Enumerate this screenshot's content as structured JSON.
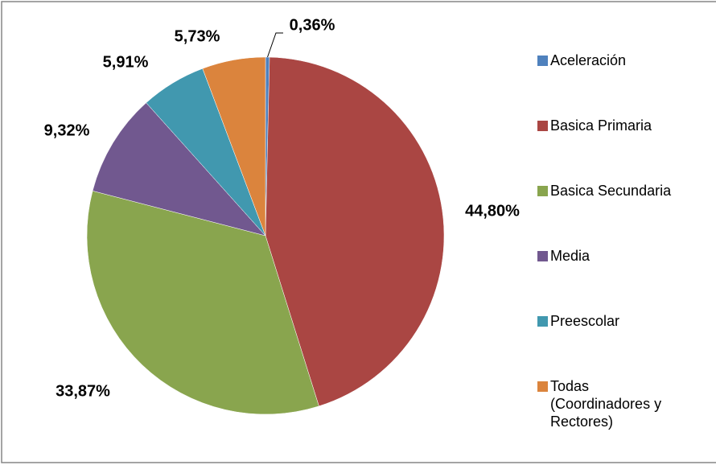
{
  "chart_data": {
    "type": "pie",
    "categories": [
      "Aceleración",
      "Basica Primaria",
      "Basica Secundaria",
      "Media",
      "Preescolar",
      "Todas (Coordinadores y Rectores)"
    ],
    "values": [
      0.36,
      44.8,
      33.87,
      9.32,
      5.91,
      5.73
    ],
    "value_labels": [
      "0,36%",
      "44,80%",
      "33,87%",
      "9,32%",
      "5,91%",
      "5,73%"
    ],
    "colors": [
      "#4F81BD",
      "#AA4643",
      "#89A54E",
      "#71588F",
      "#4198AF",
      "#DB843D"
    ],
    "legend": "right"
  }
}
